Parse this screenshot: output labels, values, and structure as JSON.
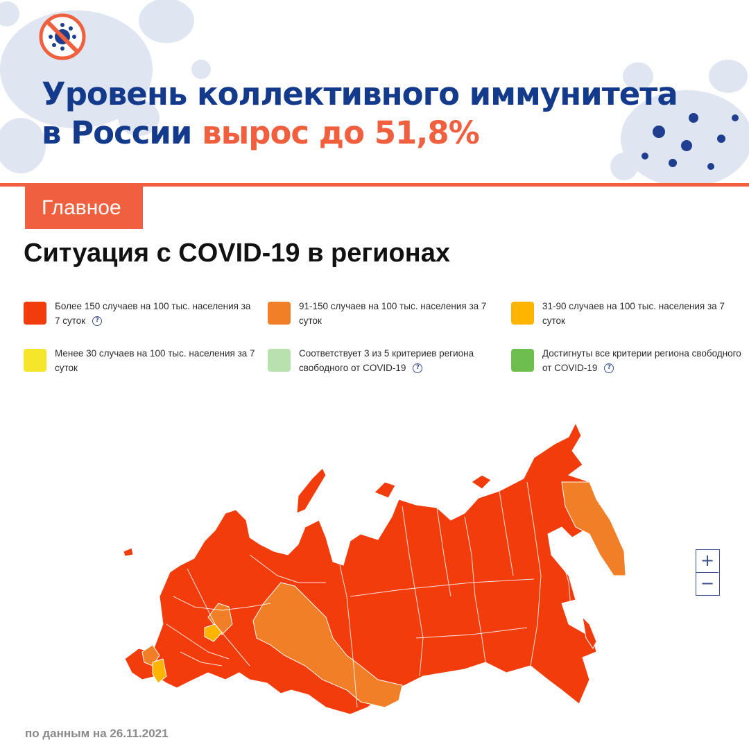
{
  "headline": {
    "line1": "Уровень коллективного иммунитета",
    "line2_part1": "в России ",
    "line2_accent": "вырос до 51,8%"
  },
  "badge": "Главное",
  "section_title": "Ситуация с COVID-19 в регионах",
  "legend": [
    {
      "color": "#f23c0c",
      "text": "Более 150 случаев на 100 тыс. населения за 7 суток",
      "help": true
    },
    {
      "color": "#f07f27",
      "text": "91-150 случаев на 100 тыс. населения за 7 суток",
      "help": false
    },
    {
      "color": "#ffb400",
      "text": "31-90 случаев на 100 тыс. населения за 7 суток",
      "help": false
    },
    {
      "color": "#f5e62c",
      "text": "Менее 30 случаев на 100 тыс. населения за 7 суток",
      "help": false
    },
    {
      "color": "#b9e1b0",
      "text": "Соответствует 3 из 5 критериев региона свободного от COVID-19",
      "help": true
    },
    {
      "color": "#6dbe4e",
      "text": "Достигнуты все критерии региона свободного от COVID-19",
      "help": true
    }
  ],
  "help_glyph": "?",
  "zoom": {
    "in": "+",
    "out": "−"
  },
  "footnote": "по данным на 26.11.2021",
  "map_colors": {
    "high": "#f23c0c",
    "mid": "#f07f27",
    "low": "#ffb400",
    "borders": "#ffffff"
  },
  "icons": {
    "logo": "crossed-virus-icon",
    "help": "question-circle-icon",
    "zoom_in": "plus-icon",
    "zoom_out": "minus-icon"
  }
}
